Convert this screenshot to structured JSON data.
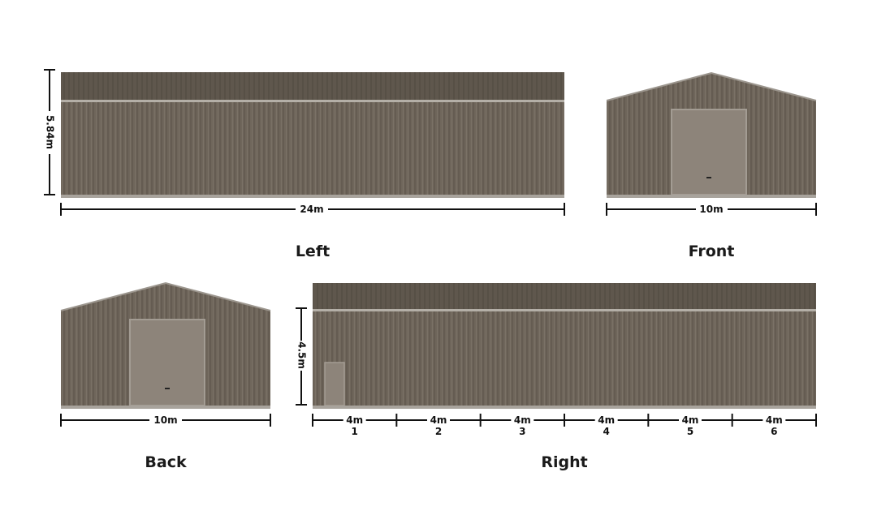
{
  "colors": {
    "wall": "#6f665b",
    "roof": "#5e564c",
    "door": "#8d847a",
    "base": "#a8a39c",
    "trim": "#b4afa7",
    "dim_line": "#111111"
  },
  "views": {
    "left": {
      "label": "Left",
      "width": "24m",
      "height": "5.84m"
    },
    "front": {
      "label": "Front",
      "width": "10m"
    },
    "back": {
      "label": "Back",
      "width": "10m"
    },
    "right": {
      "label": "Right",
      "height": "4.5m",
      "bays": [
        {
          "width": "4m",
          "number": "1"
        },
        {
          "width": "4m",
          "number": "2"
        },
        {
          "width": "4m",
          "number": "3"
        },
        {
          "width": "4m",
          "number": "4"
        },
        {
          "width": "4m",
          "number": "5"
        },
        {
          "width": "4m",
          "number": "6"
        }
      ]
    }
  }
}
